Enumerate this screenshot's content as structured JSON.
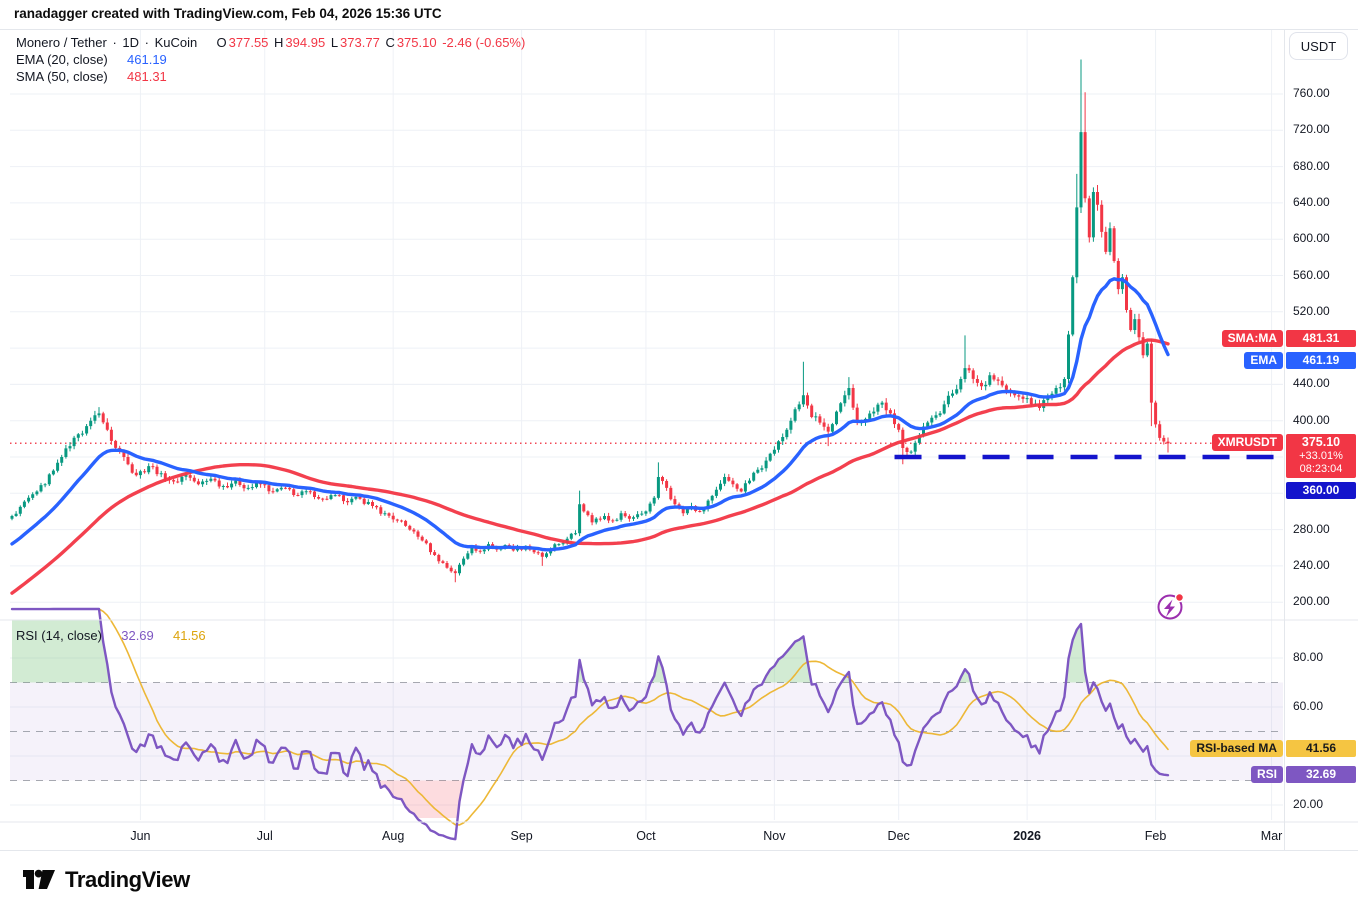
{
  "attribution": "ranadagger created with TradingView.com, Feb 04, 2026 15:36 UTC",
  "header": {
    "symbol": "Monero / Tether",
    "dot": "·",
    "interval": "1D",
    "exchange": "KuCoin",
    "o_label": "O",
    "o": "377.55",
    "h_label": "H",
    "h": "394.95",
    "l_label": "L",
    "l": "373.77",
    "c_label": "C",
    "c": "375.10",
    "change": "-2.46 (-0.65%)",
    "ema_label": "EMA (20, close)",
    "ema_value": "461.19",
    "sma_label": "SMA (50, close)",
    "sma_value": "481.31"
  },
  "rsi_panel": {
    "legend_label": "RSI (14, close)",
    "value": "32.69",
    "ma_value": "41.56",
    "ticks": [
      [
        80,
        "80.00"
      ],
      [
        60,
        "60.00"
      ],
      [
        20,
        "20.00"
      ]
    ],
    "grid_levels": [
      80,
      60,
      40,
      20
    ],
    "band": {
      "upper": 70,
      "middle": 50,
      "lower": 30
    },
    "badge_ma_label": "RSI-based MA",
    "badge_rsi_label": "RSI"
  },
  "axis": {
    "currency": "USDT",
    "price_ticks": [
      [
        760,
        "760.00"
      ],
      [
        720,
        "720.00"
      ],
      [
        680,
        "680.00"
      ],
      [
        640,
        "640.00"
      ],
      [
        600,
        "600.00"
      ],
      [
        560,
        "560.00"
      ],
      [
        520,
        "520.00"
      ],
      [
        440,
        "440.00"
      ],
      [
        400,
        "400.00"
      ],
      [
        280,
        "280.00"
      ],
      [
        240,
        "240.00"
      ],
      [
        200,
        "200.00"
      ]
    ],
    "time_ticks": [
      {
        "day": 31,
        "label": "Jun"
      },
      {
        "day": 61,
        "label": "Jul"
      },
      {
        "day": 92,
        "label": "Aug"
      },
      {
        "day": 123,
        "label": "Sep"
      },
      {
        "day": 153,
        "label": "Oct"
      },
      {
        "day": 184,
        "label": "Nov"
      },
      {
        "day": 214,
        "label": "Dec"
      },
      {
        "day": 245,
        "label": "2026",
        "bold": true
      },
      {
        "day": 276,
        "label": "Feb"
      },
      {
        "day": 304,
        "label": "Mar"
      }
    ],
    "badges": {
      "sma_chip": "SMA:MA",
      "sma_value": "481.31",
      "ema_chip": "EMA",
      "ema_value": "461.19",
      "sym_chip": "XMRUSDT",
      "sym_price": "375.10",
      "sym_change": "+33.01%",
      "sym_countdown": "08:23:04",
      "level_value": "360.00"
    }
  },
  "colors": {
    "up": "#089981",
    "down": "#f23645",
    "ema": "#2962ff",
    "sma": "#f23645",
    "price_line": "#f23645",
    "level_line": "#1414cc",
    "rsi": "#7e57c2",
    "rsi_ma": "#ecb42c",
    "band_fill": "rgba(126,87,194,0.08)",
    "band_edge": "#8a8e98",
    "overbought_fill": "rgba(76,175,80,0.25)",
    "oversold_fill": "rgba(247,82,95,0.20)",
    "grid": "#eef1f6",
    "flash": "#9b2fae",
    "flash_dot": "#f23645"
  },
  "chart_data": {
    "type": "candlestick",
    "symbol": "XMRUSDT",
    "exchange": "KuCoin",
    "interval": "1D",
    "price_line_value": 375.1,
    "support_level": 360.0,
    "support_from_day": 213,
    "ylim": [
      200,
      800
    ],
    "days_total": 280,
    "warmup_anchors": [
      [
        -50,
        128
      ],
      [
        -44,
        142
      ],
      [
        -38,
        160
      ],
      [
        -32,
        178
      ],
      [
        -26,
        200
      ],
      [
        -20,
        228
      ],
      [
        -14,
        252
      ],
      [
        -8,
        272
      ],
      [
        -3,
        286
      ],
      [
        -1,
        292
      ]
    ],
    "anchors": [
      [
        0,
        295
      ],
      [
        2,
        305
      ],
      [
        4,
        315
      ],
      [
        6,
        322
      ],
      [
        8,
        330
      ],
      [
        10,
        345
      ],
      [
        12,
        360
      ],
      [
        14,
        372
      ],
      [
        16,
        385
      ],
      [
        18,
        394
      ],
      [
        19,
        400
      ],
      [
        21,
        408,
        415,
        null
      ],
      [
        23,
        390
      ],
      [
        25,
        370
      ],
      [
        27,
        360
      ],
      [
        28,
        352
      ],
      [
        30,
        340
      ],
      [
        33,
        350
      ],
      [
        36,
        342
      ],
      [
        39,
        333
      ],
      [
        42,
        340
      ],
      [
        45,
        330
      ],
      [
        48,
        336
      ],
      [
        51,
        328
      ],
      [
        54,
        334
      ],
      [
        57,
        326
      ],
      [
        60,
        330
      ],
      [
        63,
        322
      ],
      [
        66,
        326
      ],
      [
        69,
        318
      ],
      [
        72,
        322
      ],
      [
        75,
        314
      ],
      [
        78,
        318
      ],
      [
        81,
        310
      ],
      [
        84,
        314
      ],
      [
        87,
        306
      ],
      [
        90,
        298
      ],
      [
        93,
        290
      ],
      [
        96,
        280
      ],
      [
        99,
        268
      ],
      [
        102,
        252
      ],
      [
        105,
        238
      ],
      [
        107,
        232,
        null,
        222
      ],
      [
        109,
        248
      ],
      [
        111,
        262
      ],
      [
        113,
        256
      ],
      [
        115,
        264
      ],
      [
        117,
        258
      ],
      [
        119,
        263
      ],
      [
        121,
        257
      ],
      [
        124,
        262
      ],
      [
        126,
        255
      ],
      [
        128,
        250,
        null,
        240
      ],
      [
        130,
        258
      ],
      [
        132,
        264
      ],
      [
        134,
        270
      ],
      [
        136,
        276
      ],
      [
        137,
        308,
        323,
        null
      ],
      [
        139,
        296
      ],
      [
        140,
        288
      ],
      [
        143,
        295
      ],
      [
        145,
        290
      ],
      [
        147,
        298
      ],
      [
        149,
        292
      ],
      [
        151,
        297
      ],
      [
        153,
        300
      ],
      [
        155,
        315
      ],
      [
        156,
        338,
        354,
        null
      ],
      [
        158,
        326
      ],
      [
        160,
        308
      ],
      [
        162,
        298
      ],
      [
        164,
        306
      ],
      [
        166,
        300
      ],
      [
        168,
        312
      ],
      [
        170,
        324
      ],
      [
        172,
        338
      ],
      [
        174,
        330
      ],
      [
        176,
        322
      ],
      [
        178,
        334
      ],
      [
        180,
        346
      ],
      [
        182,
        356
      ],
      [
        184,
        368
      ],
      [
        186,
        382
      ],
      [
        188,
        400
      ],
      [
        190,
        418
      ],
      [
        191,
        428,
        465,
        null
      ],
      [
        193,
        404
      ],
      [
        195,
        398
      ],
      [
        197,
        388,
        null,
        372
      ],
      [
        199,
        410
      ],
      [
        201,
        428
      ],
      [
        202,
        436,
        448,
        null
      ],
      [
        204,
        398
      ],
      [
        206,
        402
      ],
      [
        208,
        410
      ],
      [
        210,
        420
      ],
      [
        212,
        408
      ],
      [
        214,
        390
      ],
      [
        215,
        370,
        null,
        352
      ],
      [
        217,
        366
      ],
      [
        219,
        384
      ],
      [
        221,
        398
      ],
      [
        223,
        406
      ],
      [
        225,
        418
      ],
      [
        227,
        430
      ],
      [
        229,
        446
      ],
      [
        230,
        458,
        494,
        null
      ],
      [
        232,
        446
      ],
      [
        234,
        438
      ],
      [
        236,
        450
      ],
      [
        238,
        444
      ],
      [
        240,
        434
      ],
      [
        242,
        428
      ],
      [
        244,
        424
      ],
      [
        246,
        418
      ],
      [
        248,
        414
      ],
      [
        250,
        425
      ],
      [
        252,
        436
      ],
      [
        254,
        446
      ],
      [
        255,
        495
      ],
      [
        256,
        558
      ],
      [
        257,
        635,
        672,
        null
      ],
      [
        258,
        718,
        798,
        null
      ],
      [
        259,
        645,
        762,
        null
      ],
      [
        260,
        602
      ],
      [
        261,
        652
      ],
      [
        262,
        638
      ],
      [
        263,
        608
      ],
      [
        264,
        586
      ],
      [
        265,
        612
      ],
      [
        266,
        576
      ],
      [
        267,
        545
      ],
      [
        268,
        558
      ],
      [
        269,
        522
      ],
      [
        270,
        500
      ],
      [
        271,
        512
      ],
      [
        272,
        492
      ],
      [
        273,
        472
      ],
      [
        274,
        485
      ],
      [
        275,
        420,
        null,
        394
      ],
      [
        276,
        396
      ],
      [
        277,
        381
      ],
      [
        278,
        377
      ],
      [
        279,
        375,
        null,
        365
      ]
    ],
    "overlays": [
      {
        "name": "EMA",
        "period": 20,
        "last": 461.19
      },
      {
        "name": "SMA",
        "period": 50,
        "last": 481.31
      }
    ],
    "rsi": {
      "period": 14,
      "last": 32.69,
      "ma_period": 14,
      "ma_last": 41.56,
      "range_ticks": [
        80,
        60,
        20
      ],
      "band": [
        30,
        70
      ]
    }
  },
  "footer": {
    "brand": "TradingView"
  }
}
